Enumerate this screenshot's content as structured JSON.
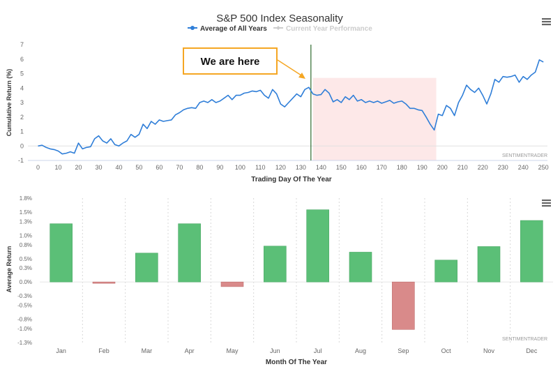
{
  "colors": {
    "line": "#2f7ed8",
    "legend_inactive": "#cccccc",
    "up_bar": "#5bbf77",
    "down_bar": "#d98a8a",
    "highlight_band": "#fde8e8",
    "marker_line": "#2d6a2d",
    "callout_border": "#f5a623",
    "axis_text": "#666666",
    "title_text": "#333333",
    "watermark": "#999999",
    "menu_icon": "#666666"
  },
  "icons": [
    "hamburger-menu-icon",
    "legend-line-marker-icon",
    "callout-arrow-icon"
  ],
  "callout": {
    "text": "We are here"
  },
  "chart_data": [
    {
      "type": "line",
      "title": "S&P 500 Index Seasonality",
      "legend": [
        "Average of All Years",
        "Current Year Performance"
      ],
      "legend_placement": "top-center",
      "xlabel": "Trading Day Of The Year",
      "ylabel": "Cumulative Return (%)",
      "xlim": [
        -5,
        252
      ],
      "ylim": [
        -1,
        7
      ],
      "x_ticks": [
        0,
        10,
        20,
        30,
        40,
        50,
        60,
        70,
        80,
        90,
        100,
        110,
        120,
        130,
        140,
        150,
        160,
        170,
        180,
        190,
        200,
        210,
        220,
        230,
        240,
        250
      ],
      "y_ticks": [
        -1,
        0,
        1,
        2,
        3,
        4,
        5,
        6,
        7
      ],
      "grid": "horizontal zero line only",
      "watermark": "SENTIMENTRADER",
      "vertical_marker_x": 135,
      "highlight_range": [
        136,
        197
      ],
      "series": [
        {
          "name": "Average of All Years",
          "points": [
            [
              0,
              0
            ],
            [
              2,
              0.05
            ],
            [
              4,
              -0.1
            ],
            [
              6,
              -0.2
            ],
            [
              8,
              -0.25
            ],
            [
              10,
              -0.35
            ],
            [
              12,
              -0.55
            ],
            [
              14,
              -0.5
            ],
            [
              16,
              -0.4
            ],
            [
              18,
              -0.5
            ],
            [
              20,
              0.2
            ],
            [
              22,
              -0.2
            ],
            [
              24,
              -0.1
            ],
            [
              26,
              -0.05
            ],
            [
              28,
              0.5
            ],
            [
              30,
              0.7
            ],
            [
              32,
              0.35
            ],
            [
              34,
              0.2
            ],
            [
              36,
              0.5
            ],
            [
              38,
              0.1
            ],
            [
              40,
              0.0
            ],
            [
              42,
              0.2
            ],
            [
              44,
              0.35
            ],
            [
              46,
              0.8
            ],
            [
              48,
              0.6
            ],
            [
              50,
              0.8
            ],
            [
              52,
              1.5
            ],
            [
              54,
              1.2
            ],
            [
              56,
              1.7
            ],
            [
              58,
              1.5
            ],
            [
              60,
              1.8
            ],
            [
              62,
              1.7
            ],
            [
              64,
              1.75
            ],
            [
              66,
              1.8
            ],
            [
              68,
              2.15
            ],
            [
              70,
              2.3
            ],
            [
              72,
              2.5
            ],
            [
              74,
              2.6
            ],
            [
              76,
              2.65
            ],
            [
              78,
              2.6
            ],
            [
              80,
              3.0
            ],
            [
              82,
              3.1
            ],
            [
              84,
              3.0
            ],
            [
              86,
              3.2
            ],
            [
              88,
              3.0
            ],
            [
              90,
              3.1
            ],
            [
              92,
              3.3
            ],
            [
              94,
              3.5
            ],
            [
              96,
              3.2
            ],
            [
              98,
              3.5
            ],
            [
              100,
              3.5
            ],
            [
              102,
              3.65
            ],
            [
              104,
              3.7
            ],
            [
              106,
              3.8
            ],
            [
              108,
              3.75
            ],
            [
              110,
              3.85
            ],
            [
              112,
              3.5
            ],
            [
              114,
              3.3
            ],
            [
              116,
              3.9
            ],
            [
              118,
              3.6
            ],
            [
              120,
              2.9
            ],
            [
              122,
              2.7
            ],
            [
              124,
              3.0
            ],
            [
              126,
              3.3
            ],
            [
              128,
              3.6
            ],
            [
              130,
              3.4
            ],
            [
              132,
              3.9
            ],
            [
              134,
              4.05
            ],
            [
              136,
              3.6
            ],
            [
              138,
              3.5
            ],
            [
              140,
              3.55
            ],
            [
              142,
              3.9
            ],
            [
              144,
              3.65
            ],
            [
              146,
              3.05
            ],
            [
              148,
              3.2
            ],
            [
              150,
              3.0
            ],
            [
              152,
              3.4
            ],
            [
              154,
              3.2
            ],
            [
              156,
              3.5
            ],
            [
              158,
              3.1
            ],
            [
              160,
              3.2
            ],
            [
              162,
              3.0
            ],
            [
              164,
              3.1
            ],
            [
              166,
              3.0
            ],
            [
              168,
              3.1
            ],
            [
              170,
              2.95
            ],
            [
              172,
              3.05
            ],
            [
              174,
              3.15
            ],
            [
              176,
              2.95
            ],
            [
              178,
              3.05
            ],
            [
              180,
              3.1
            ],
            [
              182,
              2.9
            ],
            [
              184,
              2.6
            ],
            [
              186,
              2.6
            ],
            [
              188,
              2.5
            ],
            [
              190,
              2.45
            ],
            [
              192,
              2.0
            ],
            [
              194,
              1.5
            ],
            [
              196,
              1.1
            ],
            [
              198,
              2.2
            ],
            [
              200,
              2.1
            ],
            [
              202,
              2.8
            ],
            [
              204,
              2.6
            ],
            [
              206,
              2.1
            ],
            [
              208,
              3.0
            ],
            [
              210,
              3.5
            ],
            [
              212,
              4.2
            ],
            [
              214,
              3.9
            ],
            [
              216,
              3.7
            ],
            [
              218,
              4.0
            ],
            [
              220,
              3.5
            ],
            [
              222,
              2.9
            ],
            [
              224,
              3.6
            ],
            [
              226,
              4.6
            ],
            [
              228,
              4.4
            ],
            [
              230,
              4.8
            ],
            [
              232,
              4.75
            ],
            [
              234,
              4.8
            ],
            [
              236,
              4.9
            ],
            [
              238,
              4.4
            ],
            [
              240,
              4.8
            ],
            [
              242,
              4.6
            ],
            [
              244,
              4.9
            ],
            [
              246,
              5.1
            ],
            [
              248,
              5.95
            ],
            [
              250,
              5.8
            ]
          ]
        }
      ]
    },
    {
      "type": "bar",
      "xlabel": "Month Of The Year",
      "ylabel": "Average Return",
      "ylim": [
        -1.3,
        1.8
      ],
      "y_ticks": [
        -1.3,
        -1.0,
        -0.8,
        -0.5,
        -0.3,
        0.0,
        0.3,
        0.5,
        0.8,
        1.0,
        1.3,
        1.5,
        1.8
      ],
      "y_tick_labels": [
        "-1.3%",
        "-1.0%",
        "-0.8%",
        "-0.5%",
        "-0.3%",
        "0.0%",
        "0.3%",
        "0.5%",
        "0.8%",
        "1.0%",
        "1.3%",
        "1.5%",
        "1.8%"
      ],
      "categories": [
        "Jan",
        "Feb",
        "Mar",
        "Apr",
        "May",
        "Jun",
        "Jul",
        "Aug",
        "Sep",
        "Oct",
        "Nov",
        "Dec"
      ],
      "values": [
        1.25,
        -0.03,
        0.62,
        1.25,
        -0.1,
        0.77,
        1.55,
        0.64,
        -1.02,
        0.47,
        0.76,
        1.32
      ],
      "grid": "vertical dashed category separators",
      "watermark": "SENTIMENTRADER"
    }
  ]
}
